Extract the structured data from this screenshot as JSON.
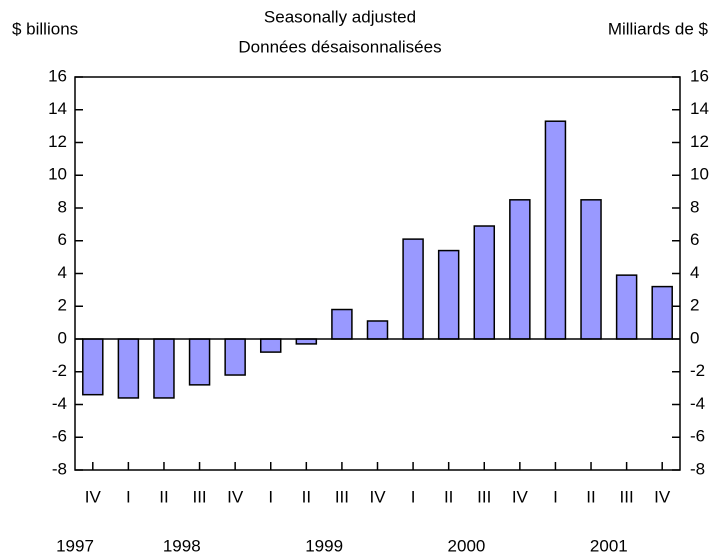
{
  "chart_data": {
    "type": "bar",
    "title": "Seasonally adjusted",
    "subtitle": "Données désaisonnalisées",
    "y_label": "$ billions",
    "y2_label": "Milliards de $",
    "categories": [
      "IV",
      "I",
      "II",
      "III",
      "IV",
      "I",
      "II",
      "III",
      "IV",
      "I",
      "II",
      "III",
      "IV",
      "I",
      "II",
      "III",
      "IV"
    ],
    "year_groups": [
      {
        "label": "1997",
        "count": 1
      },
      {
        "label": "1998",
        "count": 4
      },
      {
        "label": "1999",
        "count": 4
      },
      {
        "label": "2000",
        "count": 4
      },
      {
        "label": "2001",
        "count": 4
      }
    ],
    "values": [
      -3.4,
      -3.6,
      -3.6,
      -2.8,
      -2.2,
      -0.8,
      -0.3,
      1.8,
      1.1,
      6.1,
      5.4,
      6.9,
      8.5,
      13.3,
      8.5,
      3.9,
      3.2
    ],
    "color": "#9999ff",
    "ylim": [
      -8,
      16
    ],
    "yticks": [
      -8,
      -6,
      -4,
      -2,
      0,
      2,
      4,
      6,
      8,
      10,
      12,
      14,
      16
    ],
    "y2lim": [
      -8,
      16
    ],
    "y2ticks": [
      -8,
      -6,
      -4,
      -2,
      0,
      2,
      4,
      6,
      8,
      10,
      12,
      14,
      16
    ]
  }
}
